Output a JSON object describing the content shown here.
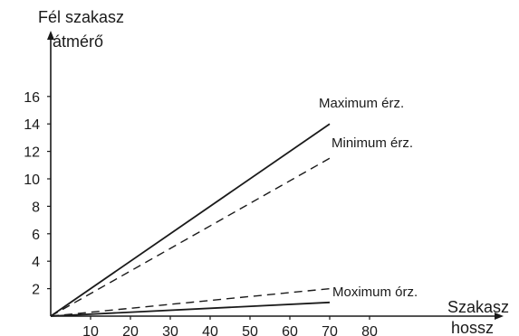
{
  "chart_data": {
    "type": "line",
    "ylabel": [
      "Fél szakasz",
      "átmérő"
    ],
    "xlabel": [
      "Szakasz",
      "hossz"
    ],
    "xlim": [
      0,
      90
    ],
    "ylim": [
      0,
      16
    ],
    "x_ticks": [
      10,
      20,
      30,
      40,
      50,
      60,
      70,
      80
    ],
    "y_ticks": [
      2,
      4,
      6,
      8,
      10,
      12,
      14,
      16
    ],
    "grid": false,
    "legend": "none",
    "series": [
      {
        "name": "Maximum érz.",
        "style": "solid",
        "color": "#1a1a1a",
        "points": [
          [
            0,
            0
          ],
          [
            70,
            14
          ]
        ]
      },
      {
        "name": "Minimum érz.",
        "style": "dashed",
        "color": "#1a1a1a",
        "points": [
          [
            0,
            0
          ],
          [
            70,
            11.5
          ]
        ]
      },
      {
        "style": "dashed",
        "color": "#1a1a1a",
        "points": [
          [
            0,
            0
          ],
          [
            70,
            2.0
          ]
        ]
      },
      {
        "name": "Moximum órz.",
        "style": "solid",
        "color": "#1a1a1a",
        "points": [
          [
            0,
            0
          ],
          [
            70,
            1.0
          ]
        ]
      }
    ]
  }
}
